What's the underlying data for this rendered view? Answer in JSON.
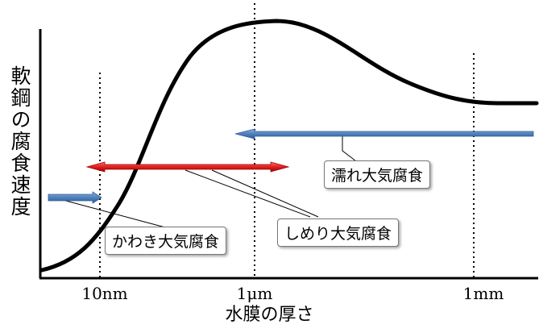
{
  "axes": {
    "ylabel": "軟鋼の腐食速度",
    "xlabel": "水膜の厚さ",
    "ticks": [
      "10nm",
      "1μm",
      "1mm"
    ]
  },
  "regions": [
    {
      "label": "かわき大気腐食"
    },
    {
      "label": "しめり大気腐食"
    },
    {
      "label": "濡れ大気腐食"
    }
  ],
  "colors": {
    "curve": "#000000",
    "dry_arrow": "#4f81bd",
    "damp_arrow": "#e02020",
    "wet_arrow": "#4f81bd"
  }
}
